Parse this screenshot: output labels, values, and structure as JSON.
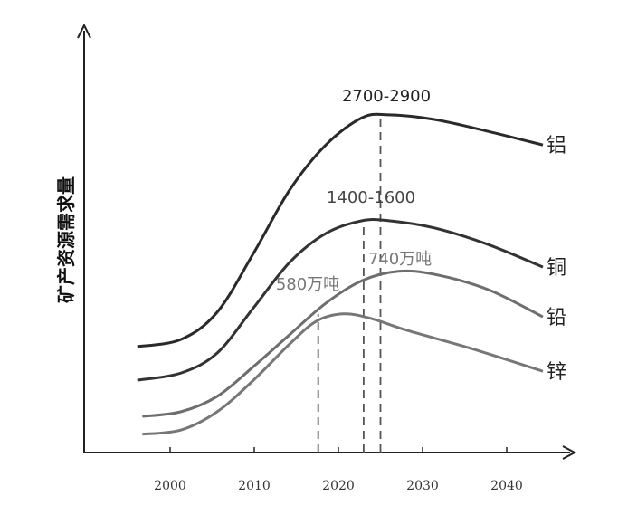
{
  "chart_data": {
    "type": "line",
    "title": "",
    "xlabel": "",
    "ylabel": "矿产资源需求量",
    "xlim": [
      1990,
      2050
    ],
    "ylim": [
      0,
      100
    ],
    "x_ticks": [
      "2000",
      "2010",
      "2020",
      "2030",
      "2040"
    ],
    "grid": false,
    "series": [
      {
        "name": "铝",
        "color": "#2a2a2a",
        "x": [
          1996.1,
          2001.3,
          2005.6,
          2009.9,
          2014.2,
          2018.5,
          2022.8,
          2026.0,
          2031.4,
          2037.8,
          2044.3
        ],
        "y": [
          24.9,
          26.6,
          33.0,
          46.8,
          61.7,
          72.3,
          78.7,
          79.4,
          78.3,
          75.5,
          72.3
        ]
      },
      {
        "name": "铜",
        "color": "#333333",
        "x": [
          1996.1,
          2001.3,
          2005.6,
          2009.9,
          2014.2,
          2018.5,
          2022.8,
          2026.0,
          2031.4,
          2037.8,
          2044.3
        ],
        "y": [
          17.0,
          18.7,
          23.4,
          34.0,
          44.7,
          51.5,
          54.5,
          54.5,
          52.8,
          48.9,
          43.6
        ]
      },
      {
        "name": "铅",
        "color": "#6e6e6e",
        "x": [
          1996.7,
          2001.3,
          2005.6,
          2009.9,
          2014.2,
          2018.5,
          2022.8,
          2027.1,
          2031.4,
          2037.8,
          2044.3
        ],
        "y": [
          8.5,
          9.6,
          13.2,
          20.2,
          27.7,
          35.1,
          40.4,
          42.6,
          41.9,
          38.3,
          31.9
        ]
      },
      {
        "name": "锌",
        "color": "#777777",
        "x": [
          1996.7,
          2001.3,
          2005.6,
          2009.9,
          2014.2,
          2017.4,
          2020.6,
          2023.9,
          2028.2,
          2035.7,
          2044.3
        ],
        "y": [
          4.3,
          5.3,
          9.6,
          17.0,
          25.5,
          30.9,
          32.6,
          31.5,
          28.7,
          24.5,
          19.1
        ]
      }
    ],
    "annotations": [
      {
        "text": "2700-2900",
        "series": "铝",
        "x": 2025.0,
        "y_peak": 79.4,
        "color": "#222222"
      },
      {
        "text": "1400-1600",
        "series": "铜",
        "x": 2023.0,
        "y_peak": 54.5,
        "color": "#444444"
      },
      {
        "text": "740万吨",
        "series": "铅",
        "x": 2027.0,
        "y_peak": 42.6,
        "color": "#777777"
      },
      {
        "text": "580万吨",
        "series": "锌",
        "x": 2017.6,
        "y_peak": 32.6,
        "color": "#777777"
      }
    ]
  }
}
